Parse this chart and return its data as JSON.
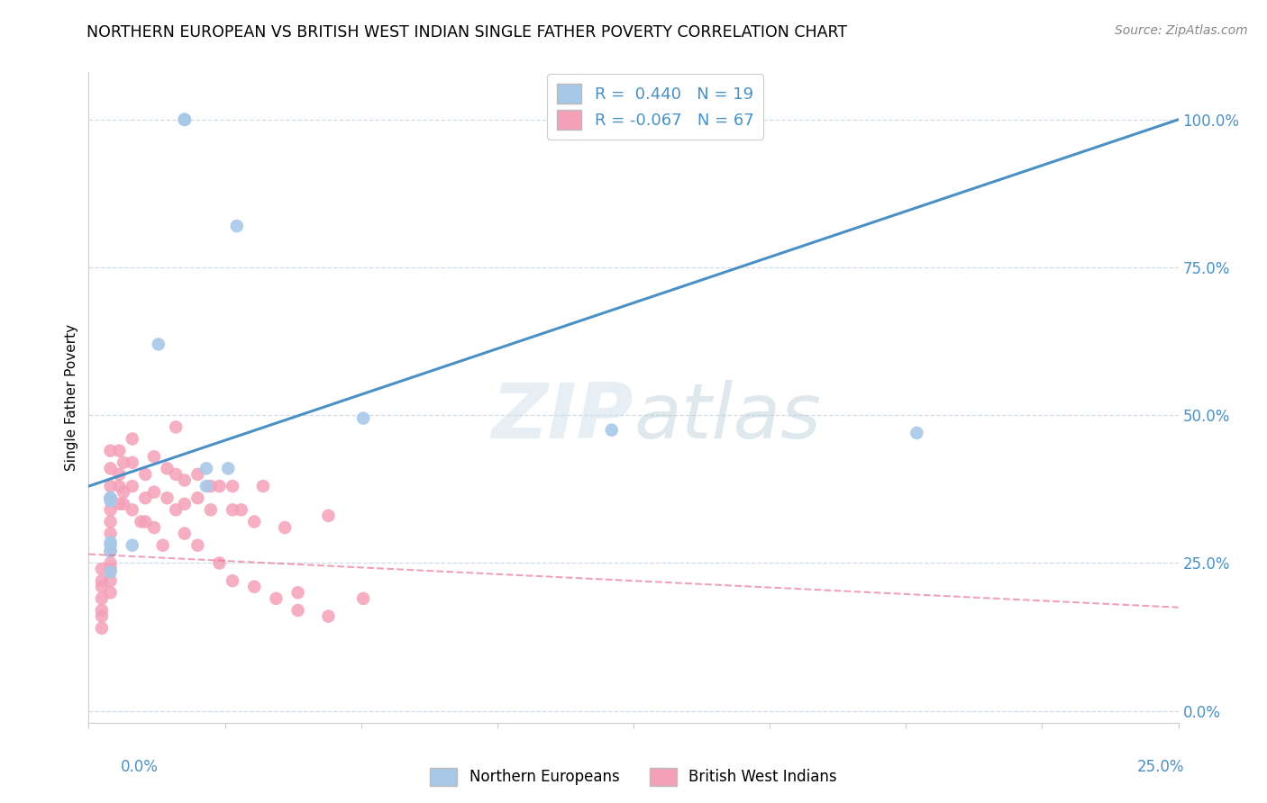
{
  "title": "NORTHERN EUROPEAN VS BRITISH WEST INDIAN SINGLE FATHER POVERTY CORRELATION CHART",
  "source": "Source: ZipAtlas.com",
  "ylabel": "Single Father Poverty",
  "xlim": [
    0.0,
    0.25
  ],
  "ylim": [
    -0.02,
    1.08
  ],
  "blue_color": "#a8c8e8",
  "pink_color": "#f4a0b8",
  "blue_line_color": "#4a90c4",
  "pink_line_color": "#e87090",
  "watermark_zip": "ZIP",
  "watermark_atlas": "atlas",
  "blue_scatter_x": [
    0.022,
    0.022,
    0.034,
    0.022,
    0.016,
    0.027,
    0.032,
    0.027,
    0.063,
    0.12,
    0.19,
    0.005,
    0.005,
    0.01,
    0.005,
    0.005,
    0.005,
    0.005,
    0.005
  ],
  "blue_scatter_y": [
    1.0,
    1.0,
    0.82,
    1.0,
    0.62,
    0.41,
    0.41,
    0.38,
    0.495,
    0.475,
    0.47,
    0.36,
    0.355,
    0.28,
    0.27,
    0.285,
    0.235,
    0.28,
    0.36
  ],
  "pink_scatter_x": [
    0.003,
    0.003,
    0.003,
    0.003,
    0.003,
    0.003,
    0.005,
    0.005,
    0.005,
    0.005,
    0.005,
    0.005,
    0.005,
    0.005,
    0.005,
    0.005,
    0.007,
    0.007,
    0.008,
    0.008,
    0.01,
    0.01,
    0.01,
    0.013,
    0.013,
    0.015,
    0.015,
    0.018,
    0.018,
    0.02,
    0.02,
    0.022,
    0.022,
    0.025,
    0.025,
    0.028,
    0.028,
    0.03,
    0.033,
    0.033,
    0.035,
    0.038,
    0.04,
    0.045,
    0.048,
    0.055,
    0.063,
    0.003,
    0.005,
    0.005,
    0.007,
    0.007,
    0.008,
    0.01,
    0.012,
    0.013,
    0.015,
    0.017,
    0.02,
    0.022,
    0.025,
    0.03,
    0.033,
    0.038,
    0.043,
    0.048,
    0.055
  ],
  "pink_scatter_y": [
    0.24,
    0.22,
    0.21,
    0.19,
    0.17,
    0.14,
    0.44,
    0.41,
    0.38,
    0.36,
    0.34,
    0.32,
    0.3,
    0.27,
    0.25,
    0.22,
    0.44,
    0.4,
    0.42,
    0.37,
    0.46,
    0.42,
    0.38,
    0.4,
    0.36,
    0.43,
    0.37,
    0.41,
    0.36,
    0.48,
    0.4,
    0.39,
    0.35,
    0.4,
    0.36,
    0.38,
    0.34,
    0.38,
    0.38,
    0.34,
    0.34,
    0.32,
    0.38,
    0.31,
    0.2,
    0.33,
    0.19,
    0.16,
    0.24,
    0.2,
    0.38,
    0.35,
    0.35,
    0.34,
    0.32,
    0.32,
    0.31,
    0.28,
    0.34,
    0.3,
    0.28,
    0.25,
    0.22,
    0.21,
    0.19,
    0.17,
    0.16
  ],
  "blue_line_x0": 0.0,
  "blue_line_y0": 0.38,
  "blue_line_x1": 0.25,
  "blue_line_y1": 1.0,
  "pink_line_x0": 0.0,
  "pink_line_y0": 0.265,
  "pink_line_x1": 0.25,
  "pink_line_y1": 0.175,
  "ytick_values": [
    0.0,
    0.25,
    0.5,
    0.75,
    1.0
  ],
  "ytick_labels": [
    "0.0%",
    "25.0%",
    "50.0%",
    "75.0%",
    "100.0%"
  ],
  "grid_color": "#d0dde8",
  "spine_color": "#cccccc"
}
